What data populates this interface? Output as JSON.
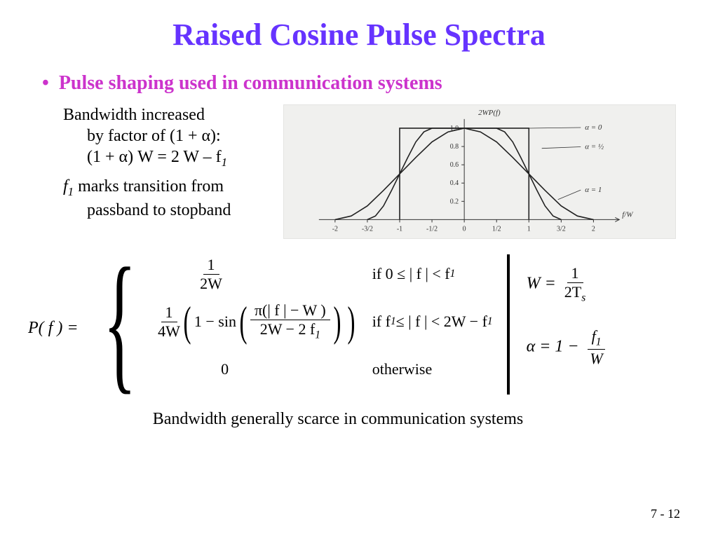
{
  "title": "Raised Cosine Pulse Spectra",
  "bullet": "Pulse shaping used in communication systems",
  "left": {
    "l1": "Bandwidth increased",
    "l2a": "by factor of (1 + α):",
    "l2b": "(1 + α) W = 2 W – f",
    "l2b_sub": "1",
    "l3a": "f",
    "l3a_sub": "1",
    "l3b": " marks transition from",
    "l4": "passband to stopband"
  },
  "chart": {
    "type": "line",
    "background_color": "#f0f0ee",
    "axis_color": "#333333",
    "curve_color": "#222222",
    "curve_width": 1.6,
    "xlim": [
      -2.25,
      2.4
    ],
    "ylim": [
      0,
      1.1
    ],
    "xticks": [
      -2,
      -1.5,
      -1,
      -0.5,
      0,
      0.5,
      1,
      1.5,
      2
    ],
    "xtick_labels": [
      "-2",
      "-3/2",
      "-1",
      "-1/2",
      "0",
      "1/2",
      "1",
      "3/2",
      "2"
    ],
    "yticks": [
      0.2,
      0.4,
      0.6,
      0.8,
      1.0
    ],
    "ytick_labels": [
      "0.2",
      "0.4",
      "0.6",
      "0.8",
      "1.0"
    ],
    "ylabel_top": "2WP(f)",
    "xlabel_right": "f/W",
    "legend": [
      "α = 0",
      "α = ½",
      "α = 1"
    ],
    "curves": {
      "alpha0": [
        [
          -1,
          0
        ],
        [
          -1,
          1
        ],
        [
          1,
          1
        ],
        [
          1,
          0
        ]
      ],
      "alpha_half": [
        [
          -1.5,
          0
        ],
        [
          -1.375,
          0.04
        ],
        [
          -1.25,
          0.15
        ],
        [
          -1.125,
          0.32
        ],
        [
          -1,
          0.5
        ],
        [
          -0.875,
          0.68
        ],
        [
          -0.75,
          0.85
        ],
        [
          -0.625,
          0.96
        ],
        [
          -0.5,
          1
        ],
        [
          0.5,
          1
        ],
        [
          0.625,
          0.96
        ],
        [
          0.75,
          0.85
        ],
        [
          0.875,
          0.68
        ],
        [
          1,
          0.5
        ],
        [
          1.125,
          0.32
        ],
        [
          1.25,
          0.15
        ],
        [
          1.375,
          0.04
        ],
        [
          1.5,
          0
        ]
      ],
      "alpha1": [
        [
          -2,
          0
        ],
        [
          -1.75,
          0.04
        ],
        [
          -1.5,
          0.15
        ],
        [
          -1.25,
          0.32
        ],
        [
          -1,
          0.5
        ],
        [
          -0.75,
          0.68
        ],
        [
          -0.5,
          0.85
        ],
        [
          -0.25,
          0.96
        ],
        [
          0,
          1
        ],
        [
          0.25,
          0.96
        ],
        [
          0.5,
          0.85
        ],
        [
          0.75,
          0.68
        ],
        [
          1,
          0.5
        ],
        [
          1.25,
          0.32
        ],
        [
          1.5,
          0.15
        ],
        [
          1.75,
          0.04
        ],
        [
          2,
          0
        ]
      ]
    },
    "tick_fontsize": 10,
    "label_fontsize": 11
  },
  "equation": {
    "lhs": "P( f ) =",
    "case1_frac_num": "1",
    "case1_frac_den": "2W",
    "case2_frac1_num": "1",
    "case2_frac1_den": "4W",
    "case2_prefix": "1 − sin",
    "case2_inner_num": "π(| f | − W )",
    "case2_inner_den_a": "2W − 2 f",
    "case2_inner_den_sub": "1",
    "case3": "0",
    "cond1a": "if 0 ≤ | f | < f",
    "cond1_sub": "1",
    "cond2a": "if  f",
    "cond2_sub1": "1",
    "cond2b": " ≤ | f | < 2W − f",
    "cond2_sub2": "1",
    "cond3": "otherwise"
  },
  "side": {
    "eq1_lhs": "W =",
    "eq1_num": "1",
    "eq1_den_a": "2T",
    "eq1_den_sub": "s",
    "eq2_lhs": "α = 1 −",
    "eq2_num_a": "f",
    "eq2_num_sub": "1",
    "eq2_den": "W"
  },
  "footer": "Bandwidth generally scarce in communication systems",
  "page": "7 - 12",
  "colors": {
    "title": "#6633ff",
    "bullet": "#cc33cc",
    "text": "#000000"
  }
}
